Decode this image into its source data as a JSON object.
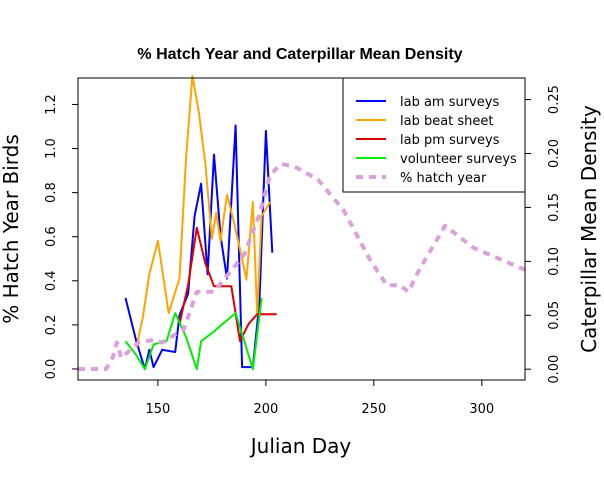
{
  "chart_data": {
    "type": "line",
    "title": "% Hatch Year and Caterpillar Mean Density",
    "xlabel": "Julian Day",
    "ylabel_left": "% Hatch Year Birds",
    "ylabel_right": "Caterpillar Mean Density",
    "xlim": [
      113,
      320
    ],
    "ylim_left": [
      -0.05,
      1.32
    ],
    "ylim_right": [
      -0.01,
      0.27
    ],
    "xticks": [
      "150",
      "200",
      "250",
      "300"
    ],
    "yticks_left": [
      "0.0",
      "0.2",
      "0.4",
      "0.6",
      "0.8",
      "1.0",
      "1.2"
    ],
    "yticks_right": [
      "0.00",
      "0.05",
      "0.10",
      "0.15",
      "0.20",
      "0.25"
    ],
    "grid": false,
    "legend_position": "top-right",
    "series": [
      {
        "name": "lab am surveys",
        "color": "#0000ff",
        "axis": "right",
        "x": [
          135,
          140,
          144,
          146,
          148,
          152,
          158,
          160,
          164,
          167,
          170,
          173,
          176,
          179,
          182,
          186,
          189,
          192,
          194,
          197,
          200,
          203
        ],
        "y": [
          0.066,
          0.026,
          0.0,
          0.018,
          0.002,
          0.018,
          0.016,
          0.05,
          0.07,
          0.142,
          0.172,
          0.088,
          0.199,
          0.124,
          0.084,
          0.226,
          0.002,
          0.002,
          0.002,
          0.062,
          0.221,
          0.108
        ]
      },
      {
        "name": "lab beat sheet",
        "color": "#ffa500",
        "axis": "right",
        "x": [
          140,
          143,
          146,
          150,
          155,
          160,
          163,
          166,
          169,
          172,
          175,
          177,
          179,
          182,
          185,
          188,
          191,
          194,
          196,
          198,
          202
        ],
        "y": [
          0.02,
          0.048,
          0.088,
          0.119,
          0.052,
          0.084,
          0.195,
          0.272,
          0.238,
          0.19,
          0.121,
          0.145,
          0.119,
          0.162,
          0.138,
          0.111,
          0.083,
          0.155,
          0.05,
          0.142,
          0.155
        ]
      },
      {
        "name": "lab pm surveys",
        "color": "#dd0000",
        "axis": "right",
        "x": [
          160,
          164,
          168,
          172,
          176,
          180,
          184,
          188,
          192,
          196,
          200,
          205
        ],
        "y": [
          0.042,
          0.078,
          0.131,
          0.098,
          0.077,
          0.077,
          0.077,
          0.026,
          0.042,
          0.051,
          0.051,
          0.051
        ]
      },
      {
        "name": "volunteer surveys",
        "color": "#00ee00",
        "axis": "right",
        "x": [
          135,
          140,
          144,
          148,
          154,
          158,
          163,
          168,
          170,
          176,
          180,
          186,
          190,
          194,
          198
        ],
        "y": [
          0.026,
          0.013,
          0.0,
          0.023,
          0.026,
          0.052,
          0.03,
          0.0,
          0.026,
          0.035,
          0.042,
          0.052,
          0.026,
          0.0,
          0.066
        ]
      },
      {
        "name": "% hatch year",
        "color": "#dda0dd",
        "axis": "left",
        "dashed": true,
        "x": [
          113,
          126,
          129,
          131,
          133,
          141,
          147,
          152,
          162,
          168,
          176,
          190,
          197,
          202,
          207,
          213,
          224,
          236,
          248,
          256,
          262,
          266,
          271,
          283,
          296,
          320
        ],
        "y": [
          0.0,
          0.0,
          0.05,
          0.12,
          0.05,
          0.12,
          0.13,
          0.12,
          0.18,
          0.35,
          0.35,
          0.52,
          0.7,
          0.88,
          0.93,
          0.92,
          0.86,
          0.72,
          0.5,
          0.38,
          0.38,
          0.35,
          0.45,
          0.65,
          0.55,
          0.45
        ]
      }
    ]
  }
}
